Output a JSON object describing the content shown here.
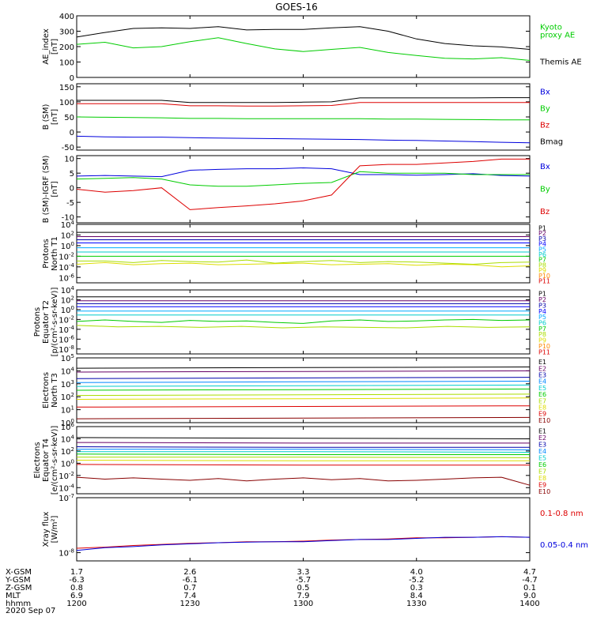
{
  "title": "GOES-16",
  "date_label": "2020 Sep 07",
  "xaxis": {
    "row_labels": [
      "X-GSM",
      "Y-GSM",
      "Z-GSM",
      "MLT",
      "hhmm"
    ],
    "columns": [
      [
        "1.7",
        "-6.3",
        "0.8",
        "6.9",
        "1200"
      ],
      [
        "2.6",
        "-6.1",
        "0.7",
        "7.4",
        "1230"
      ],
      [
        "3.3",
        "-5.7",
        "0.5",
        "7.9",
        "1300"
      ],
      [
        "4.0",
        "-5.2",
        "0.3",
        "8.4",
        "1330"
      ],
      [
        "4.7",
        "-4.7",
        "0.1",
        "9.0",
        "1400"
      ]
    ]
  },
  "chart_data": [
    {
      "type": "line",
      "ylabel": [
        "AE_index",
        "[nT]"
      ],
      "ylim": [
        0,
        400
      ],
      "ytick_labels": [
        "0",
        "100",
        "200",
        "300",
        "400"
      ],
      "series": [
        {
          "name": "Kyoto proxy AE",
          "label_lines": [
            "Kyoto",
            "proxy AE"
          ],
          "color": "#00cc00",
          "values": [
            215,
            228,
            192,
            200,
            232,
            258,
            220,
            185,
            168,
            182,
            195,
            162,
            142,
            124,
            120,
            128,
            110
          ]
        },
        {
          "name": "Themis AE",
          "label_lines": [
            "Themis AE"
          ],
          "color": "#000000",
          "values": [
            262,
            292,
            318,
            322,
            318,
            330,
            308,
            312,
            312,
            322,
            330,
            300,
            250,
            220,
            205,
            198,
            182
          ]
        }
      ]
    },
    {
      "type": "line",
      "ylabel": [
        "B (SM)",
        "[nT]"
      ],
      "ylim": [
        -60,
        160
      ],
      "ytick_labels": [
        "-50",
        "0",
        "50",
        "100",
        "150"
      ],
      "series": [
        {
          "name": "Bx",
          "label_lines": [
            "Bx"
          ],
          "color": "#0000dd",
          "values": [
            -14,
            -16,
            -17,
            -17,
            -19,
            -20,
            -21,
            -22,
            -23,
            -24,
            -25,
            -27,
            -28,
            -30,
            -32,
            -34,
            -36
          ]
        },
        {
          "name": "By",
          "label_lines": [
            "By"
          ],
          "color": "#00cc00",
          "values": [
            50,
            49,
            48,
            47,
            45,
            45,
            44,
            44,
            44,
            44,
            44,
            43,
            43,
            42,
            41,
            40,
            40
          ]
        },
        {
          "name": "Bz",
          "label_lines": [
            "Bz"
          ],
          "color": "#dd0000",
          "values": [
            94,
            94,
            94,
            94,
            87,
            87,
            86,
            86,
            87,
            88,
            98,
            98,
            98,
            98,
            98,
            98,
            98
          ]
        },
        {
          "name": "Bmag",
          "label_lines": [
            "Bmag"
          ],
          "color": "#000000",
          "values": [
            105,
            105,
            105,
            105,
            98,
            98,
            98,
            98,
            99,
            100,
            113,
            113,
            113,
            113,
            113,
            114,
            114
          ]
        }
      ]
    },
    {
      "type": "line",
      "ylabel": [
        "B (SM)-IGRF (SM)",
        "[nT]"
      ],
      "ylim": [
        -12,
        11
      ],
      "ytick_labels": [
        "-10",
        "-5",
        "0",
        "5",
        "10"
      ],
      "series": [
        {
          "name": "Bx",
          "label_lines": [
            "Bx"
          ],
          "color": "#0000dd",
          "values": [
            4,
            4.2,
            4,
            3.8,
            6,
            6.3,
            6.5,
            6.5,
            6.8,
            6.5,
            4.5,
            4.5,
            4.3,
            4.5,
            4.8,
            4.2,
            4
          ]
        },
        {
          "name": "By",
          "label_lines": [
            "By"
          ],
          "color": "#00cc00",
          "values": [
            3,
            3.2,
            3.5,
            3,
            1,
            0.5,
            0.5,
            1,
            1.5,
            1.8,
            5.5,
            5,
            5,
            5,
            4.5,
            4.5,
            4.5
          ]
        },
        {
          "name": "Bz",
          "label_lines": [
            "Bz"
          ],
          "color": "#dd0000",
          "values": [
            -0.5,
            -1.5,
            -1,
            0,
            -7.5,
            -6.8,
            -6.2,
            -5.5,
            -4.5,
            -2.5,
            7.5,
            8,
            8,
            8.5,
            9,
            9.8,
            9.8
          ]
        }
      ]
    },
    {
      "type": "line",
      "ylabel": [
        "Protons",
        "North T1"
      ],
      "log": true,
      "ylim": [
        -7,
        4
      ],
      "ytick_labels": [
        "10^-6",
        "10^-4",
        "10^-2",
        "10^0",
        "10^2",
        "10^4"
      ],
      "series": [
        {
          "name": "P1",
          "color": "#000000",
          "values": [
            2.5
          ]
        },
        {
          "name": "P2",
          "color": "#660066",
          "values": [
            1.7
          ]
        },
        {
          "name": "P3",
          "color": "#0000aa",
          "values": [
            1.1
          ]
        },
        {
          "name": "P4",
          "color": "#0000ff",
          "values": [
            0.5
          ]
        },
        {
          "name": "P5",
          "color": "#00aaff",
          "values": [
            -0.4
          ]
        },
        {
          "name": "P6",
          "color": "#00cccc",
          "values": [
            -1.2
          ]
        },
        {
          "name": "P7",
          "color": "#00cc00",
          "values": [
            -2
          ]
        },
        {
          "name": "P8",
          "color": "#aadd00",
          "values": [
            -2.9,
            -2.9,
            -3.2,
            -2.8,
            -3,
            -3.1,
            -2.7,
            -3.3,
            -3,
            -2.8,
            -3.2,
            -3,
            -3.1,
            -3.3,
            -3.5,
            -3.2,
            -3.1
          ]
        },
        {
          "name": "P9",
          "color": "#dddd00",
          "values": [
            -3.5,
            -3.2,
            -3.6,
            -3.4,
            -3.3,
            -3.6,
            -3.5,
            -3.4,
            -3.3,
            -3.6,
            -3.5,
            -3.4,
            -3.7,
            -3.5,
            -3.6,
            -4,
            -3.8
          ]
        },
        {
          "name": "P10",
          "color": "#ff8800",
          "values": []
        },
        {
          "name": "P11",
          "color": "#dd0000",
          "values": []
        }
      ]
    },
    {
      "type": "line",
      "ylabel": [
        "Protons",
        "Equator T2",
        "[p/(cm²-s-sr-keV)]"
      ],
      "log": true,
      "ylim": [
        -9,
        4
      ],
      "ytick_labels": [
        "10^-8",
        "10^-6",
        "10^-4",
        "10^-2",
        "10^0",
        "10^2",
        "10^4"
      ],
      "series": [
        {
          "name": "P1",
          "color": "#000000",
          "values": [
            2.6
          ]
        },
        {
          "name": "P2",
          "color": "#660066",
          "values": [
            1.8
          ]
        },
        {
          "name": "P3",
          "color": "#0000aa",
          "values": [
            1.2
          ]
        },
        {
          "name": "P4",
          "color": "#0000ff",
          "values": [
            0.6
          ]
        },
        {
          "name": "P5",
          "color": "#00aaff",
          "values": [
            -0.3
          ]
        },
        {
          "name": "P6",
          "color": "#00cccc",
          "values": [
            -1.1
          ]
        },
        {
          "name": "P7",
          "color": "#00cc00",
          "values": [
            -2.4,
            -2.1,
            -2.4,
            -2.6,
            -2.2,
            -2.4,
            -2.3,
            -2.6,
            -2.8,
            -2.3,
            -2.1,
            -2.4,
            -2.3,
            -2.1,
            -2.0,
            -2.2,
            -2.1
          ]
        },
        {
          "name": "P8",
          "color": "#aadd00",
          "values": [
            -3.2,
            -3.5,
            -3.4,
            -3.6,
            -3.4,
            -3.7,
            -3.5,
            -3.6,
            -3.7,
            -3.4,
            -3.6,
            -3.5
          ]
        },
        {
          "name": "P9",
          "color": "#dddd00",
          "values": []
        },
        {
          "name": "P10",
          "color": "#ff8800",
          "values": []
        },
        {
          "name": "P11",
          "color": "#dd0000",
          "values": []
        }
      ]
    },
    {
      "type": "line",
      "ylabel": [
        "Electrons",
        "North T3"
      ],
      "log": true,
      "ylim": [
        0,
        5
      ],
      "ytick_labels": [
        "10^0",
        "10^1",
        "10^2",
        "10^3",
        "10^4",
        "10^5"
      ],
      "series": [
        {
          "name": "E1",
          "color": "#000000",
          "values": [
            4.2,
            4.25,
            4.3
          ]
        },
        {
          "name": "E2",
          "color": "#660066",
          "values": [
            3.9,
            3.95,
            4.0
          ]
        },
        {
          "name": "E3",
          "color": "#0000aa",
          "values": [
            3.4,
            3.45,
            3.5
          ]
        },
        {
          "name": "E4",
          "color": "#0088ff",
          "values": [
            3.1,
            3.15,
            3.2
          ]
        },
        {
          "name": "E5",
          "color": "#00cccc",
          "values": [
            2.8,
            2.85,
            2.9
          ]
        },
        {
          "name": "E6",
          "color": "#00cc00",
          "values": [
            2.5,
            2.55,
            2.6
          ]
        },
        {
          "name": "E7",
          "color": "#aadd00",
          "values": [
            2.1,
            2.15,
            2.2
          ]
        },
        {
          "name": "E8",
          "color": "#dddd00",
          "values": [
            1.8,
            1.85,
            1.9
          ]
        },
        {
          "name": "E9",
          "color": "#dd0000",
          "values": [
            1.2,
            1.25,
            1.3
          ]
        },
        {
          "name": "E10",
          "color": "#880000",
          "values": [
            0.3,
            0.35,
            0.4
          ]
        }
      ]
    },
    {
      "type": "line",
      "ylabel": [
        "Electrons",
        "Equator T4",
        "[e/(cm²-s-sr-keV)]"
      ],
      "log": true,
      "ylim": [
        -5,
        6
      ],
      "ytick_labels": [
        "10^-4",
        "10^-2",
        "10^0",
        "10^2",
        "10^4",
        "10^6"
      ],
      "series": [
        {
          "name": "E1",
          "color": "#000000",
          "values": [
            4.2,
            4.1,
            4.0
          ]
        },
        {
          "name": "E2",
          "color": "#660066",
          "values": [
            3.4,
            3.3,
            3.3
          ]
        },
        {
          "name": "E3",
          "color": "#0000aa",
          "values": [
            2.7,
            2.6,
            2.6
          ]
        },
        {
          "name": "E4",
          "color": "#0088ff",
          "values": [
            2.3,
            2.3,
            2.2
          ]
        },
        {
          "name": "E5",
          "color": "#00cccc",
          "values": [
            1.9,
            1.9,
            1.8
          ]
        },
        {
          "name": "E6",
          "color": "#00cc00",
          "values": [
            1.5,
            1.4,
            1.4
          ]
        },
        {
          "name": "E7",
          "color": "#aadd00",
          "values": [
            1.0,
            1.0,
            0.9
          ]
        },
        {
          "name": "E8",
          "color": "#dddd00",
          "values": [
            0.5,
            0.4,
            0.4
          ]
        },
        {
          "name": "E9",
          "color": "#dd0000",
          "values": [
            -0.2,
            -0.3,
            -0.3
          ]
        },
        {
          "name": "E10",
          "color": "#880000",
          "values": [
            -2.3,
            -2.6,
            -2.4,
            -2.6,
            -2.8,
            -2.5,
            -2.9,
            -2.6,
            -2.4,
            -2.7,
            -2.5,
            -2.9,
            -2.8,
            -2.6,
            -2.4,
            -2.3,
            -3.6
          ]
        }
      ]
    },
    {
      "type": "line",
      "ylabel": [
        "Xray flux",
        "[W/m²]"
      ],
      "log": true,
      "ylim": [
        -8.15,
        -7
      ],
      "ytick_labels": [
        "10^-8",
        "10^-7"
      ],
      "series": [
        {
          "name": "0.1-0.8 nm",
          "label_lines": [
            "0.1-0.8 nm"
          ],
          "color": "#dd0000",
          "values": [
            -7.92,
            -7.9,
            -7.87,
            -7.85,
            -7.83,
            -7.82,
            -7.8,
            -7.8,
            -7.79,
            -7.77,
            -7.76,
            -7.75,
            -7.73,
            -7.73,
            -7.72,
            -7.71,
            -7.72
          ]
        },
        {
          "name": "0.05-0.4 nm",
          "label_lines": [
            "0.05-0.4 nm"
          ],
          "color": "#0000dd",
          "values": [
            -7.96,
            -7.91,
            -7.89,
            -7.86,
            -7.84,
            -7.82,
            -7.81,
            -7.8,
            -7.8,
            -7.78,
            -7.76,
            -7.76,
            -7.74,
            -7.72,
            -7.72,
            -7.71,
            -7.72
          ]
        }
      ]
    }
  ]
}
